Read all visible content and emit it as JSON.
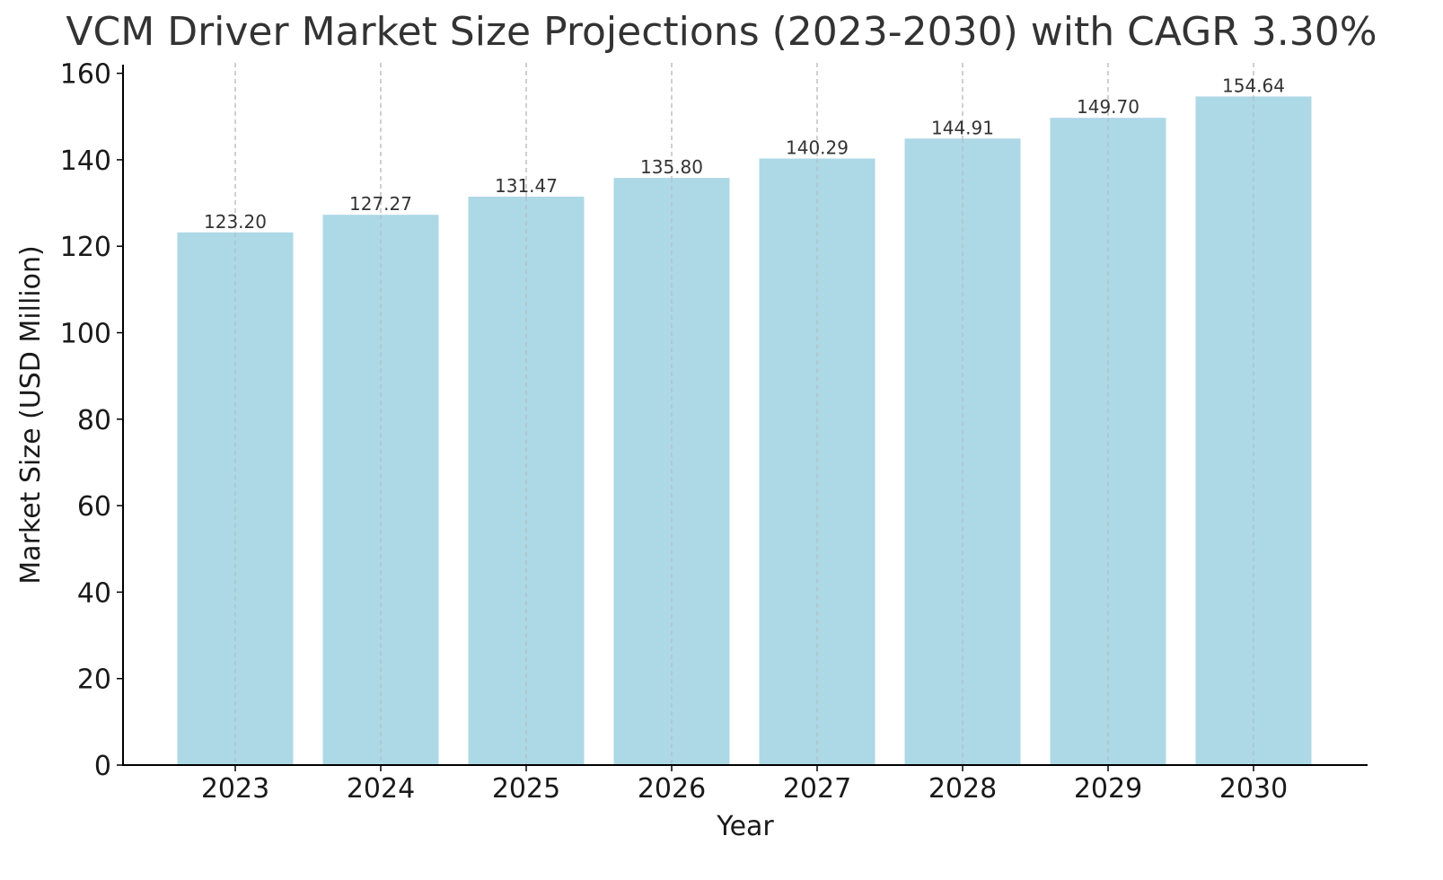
{
  "chart_data": {
    "type": "bar",
    "title": "VCM Driver Market Size Projections (2023-2030) with CAGR 3.30%",
    "xlabel": "Year",
    "ylabel": "Market Size (USD Million)",
    "categories": [
      "2023",
      "2024",
      "2025",
      "2026",
      "2027",
      "2028",
      "2029",
      "2030"
    ],
    "values": [
      123.2,
      127.27,
      131.47,
      135.8,
      140.29,
      144.91,
      149.7,
      154.64
    ],
    "data_labels": [
      "123.20",
      "127.27",
      "131.47",
      "135.80",
      "140.29",
      "144.91",
      "149.70",
      "154.64"
    ],
    "yticks": [
      "0",
      "20",
      "40",
      "60",
      "80",
      "100",
      "120",
      "140",
      "160"
    ],
    "ylim": [
      0,
      162
    ],
    "grid": "vertical dashed",
    "bar_color": "#add8e6",
    "grid_color": "#b0b0b0",
    "axis_color": "#000000"
  }
}
